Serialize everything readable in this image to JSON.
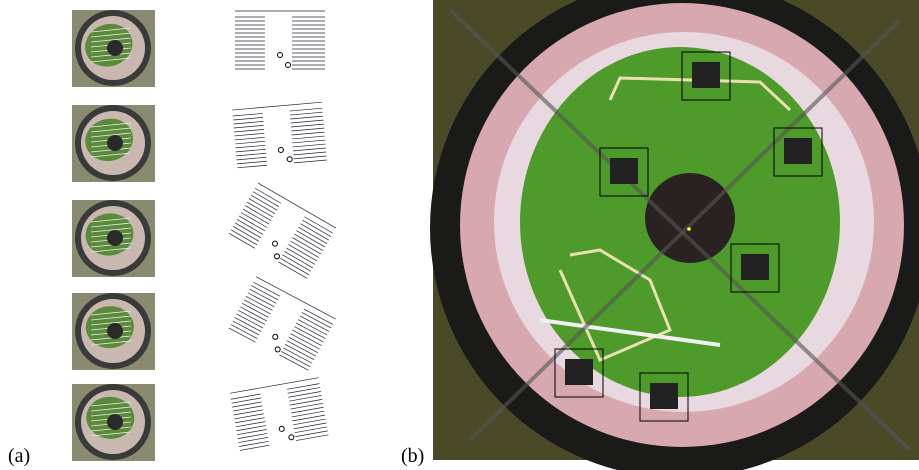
{
  "labels": {
    "a": "(a)",
    "b": "(b)"
  }
}
